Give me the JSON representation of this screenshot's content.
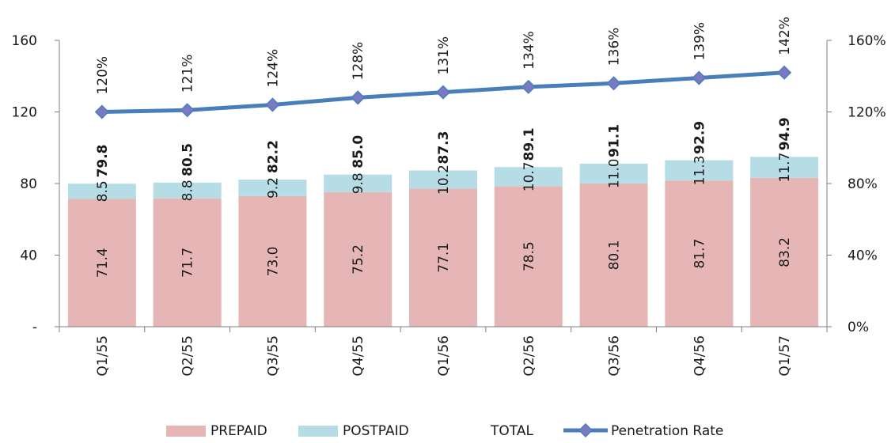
{
  "chart_data": {
    "type": "bar",
    "stacked": true,
    "categories": [
      "Q1/55",
      "Q2/55",
      "Q3/55",
      "Q4/55",
      "Q1/56",
      "Q2/56",
      "Q3/56",
      "Q4/56",
      "Q1/57"
    ],
    "series": [
      {
        "name": "PREPAID",
        "kind": "bar",
        "axis": "left",
        "color": "#e6b6b6",
        "values": [
          71.4,
          71.7,
          73.0,
          75.2,
          77.1,
          78.5,
          80.1,
          81.7,
          83.2
        ],
        "labels": [
          "71.4",
          "71.7",
          "73.0",
          "75.2",
          "77.1",
          "78.5",
          "80.1",
          "81.7",
          "83.2"
        ]
      },
      {
        "name": "POSTPAID",
        "kind": "bar",
        "axis": "left",
        "color": "#b6dde6",
        "values": [
          8.5,
          8.8,
          9.2,
          9.8,
          10.2,
          10.7,
          11.0,
          11.3,
          11.7
        ],
        "labels": [
          "8.5",
          "8.8",
          "9.2",
          "9.8",
          "10.2",
          "10.7",
          "11.0",
          "11.3",
          "11.7"
        ]
      },
      {
        "name": "TOTAL",
        "kind": "label",
        "axis": "left",
        "values": [
          79.8,
          80.5,
          82.2,
          85.0,
          87.3,
          89.1,
          91.1,
          92.9,
          94.9
        ],
        "labels": [
          "79.8",
          "80.5",
          "82.2",
          "85.0",
          "87.3",
          "89.1",
          "91.1",
          "92.9",
          "94.9"
        ]
      },
      {
        "name": "Penetration Rate",
        "kind": "line",
        "axis": "right",
        "color": "#4a7ebb",
        "marker_color": "#7b78c4",
        "values": [
          1.2,
          1.21,
          1.24,
          1.28,
          1.31,
          1.34,
          1.36,
          1.39,
          1.42
        ],
        "labels": [
          "120%",
          "121%",
          "124%",
          "128%",
          "131%",
          "134%",
          "136%",
          "139%",
          "142%"
        ]
      }
    ],
    "y_left": {
      "ylim": [
        0,
        160
      ],
      "ticks": [
        0,
        40,
        80,
        120,
        160
      ],
      "tick_labels": [
        "-",
        "40",
        "80",
        "120",
        "160"
      ]
    },
    "y_right": {
      "ylim": [
        0,
        1.6
      ],
      "ticks": [
        0,
        0.4,
        0.8,
        1.2,
        1.6
      ],
      "tick_labels": [
        "0%",
        "40%",
        "80%",
        "120%",
        "160%"
      ]
    },
    "grid": false,
    "legend": {
      "position": "bottom",
      "items": [
        "PREPAID",
        "POSTPAID",
        "TOTAL",
        "Penetration Rate"
      ]
    },
    "title": "",
    "xlabel": "",
    "ylabel": ""
  }
}
